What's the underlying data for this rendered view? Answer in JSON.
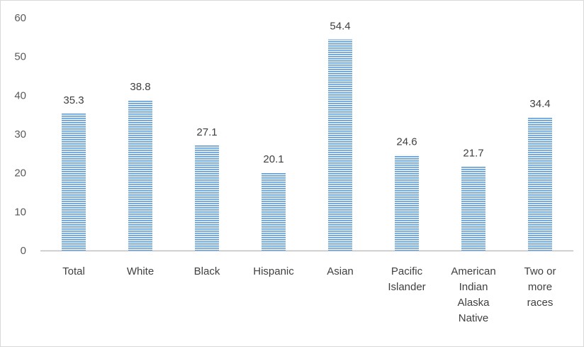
{
  "chart_data": {
    "type": "bar",
    "categories": [
      [
        "Total"
      ],
      [
        "White"
      ],
      [
        "Black"
      ],
      [
        "Hispanic"
      ],
      [
        "Asian"
      ],
      [
        "Pacific",
        "Islander"
      ],
      [
        "American",
        "Indian",
        "Alaska",
        "Native"
      ],
      [
        "Two or",
        "more",
        "races"
      ]
    ],
    "values": [
      35.3,
      38.8,
      27.1,
      20.1,
      54.4,
      24.6,
      21.7,
      34.4
    ],
    "data_labels": [
      "35.3",
      "38.8",
      "27.1",
      "20.1",
      "54.4",
      "24.6",
      "21.7",
      "34.4"
    ],
    "ylim": [
      0,
      60
    ],
    "yticks": [
      "0",
      "10",
      "20",
      "30",
      "40",
      "50",
      "60"
    ],
    "gridlines": false,
    "legend": "none",
    "bar_color": "#5b9bd5",
    "bar_fill_pattern": "horizontal-stripes"
  }
}
